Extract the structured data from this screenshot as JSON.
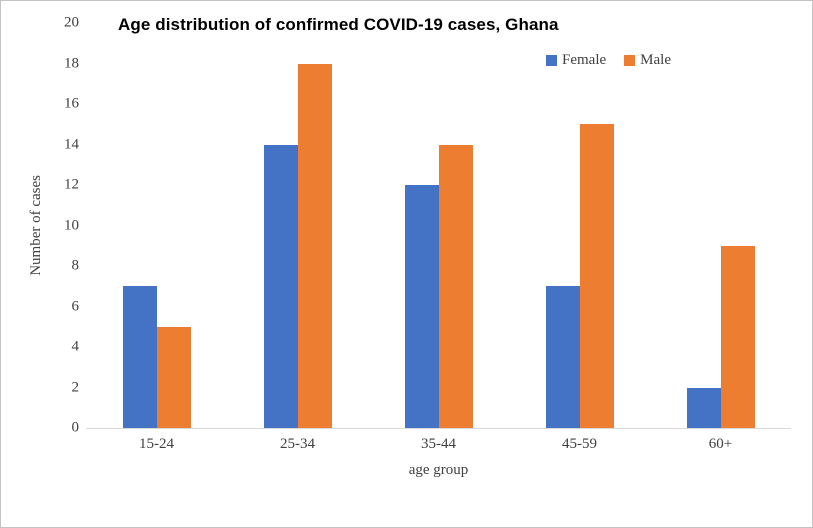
{
  "chart_data": {
    "type": "bar",
    "title": "Age distribution of confirmed COVID-19 cases, Ghana",
    "categories": [
      "15-24",
      "25-34",
      "35-44",
      "45-59",
      "60+"
    ],
    "series": [
      {
        "name": "Female",
        "color": "#4472C4",
        "values": [
          7,
          14,
          12,
          7,
          2
        ]
      },
      {
        "name": "Male",
        "color": "#ED7D31",
        "values": [
          5,
          18,
          14,
          15,
          9
        ]
      }
    ],
    "xlabel": "age group",
    "ylabel": "Number of cases",
    "ylim": [
      0,
      20
    ],
    "yticks": [
      0,
      2,
      4,
      6,
      8,
      10,
      12,
      14,
      16,
      18,
      20
    ],
    "grid": false,
    "legend_position": "top-right",
    "axis_line_color": "#d9d9d9",
    "axis_text_color": "#404040",
    "title_color": "#000000",
    "background": "#ffffff",
    "frame_border_color": "#c3c3c3"
  }
}
